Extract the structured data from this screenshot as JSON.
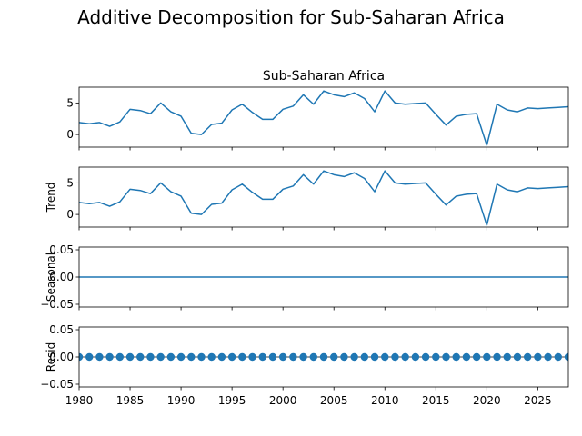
{
  "chart_data": {
    "type": "line",
    "title": "Additive Decomposition for Sub-Saharan Africa",
    "x": [
      1980,
      1981,
      1982,
      1983,
      1984,
      1985,
      1986,
      1987,
      1988,
      1989,
      1990,
      1991,
      1992,
      1993,
      1994,
      1995,
      1996,
      1997,
      1998,
      1999,
      2000,
      2001,
      2002,
      2003,
      2004,
      2005,
      2006,
      2007,
      2008,
      2009,
      2010,
      2011,
      2012,
      2013,
      2014,
      2015,
      2016,
      2017,
      2018,
      2019,
      2020,
      2021,
      2022,
      2023,
      2024,
      2025,
      2026,
      2027,
      2028
    ],
    "xlim": [
      1980,
      2028
    ],
    "xticks": [
      "1980",
      "1985",
      "1990",
      "1995",
      "2000",
      "2005",
      "2010",
      "2015",
      "2020",
      "2025"
    ],
    "line_color": "#1f77b4",
    "panels": [
      {
        "name": "observed",
        "subtitle": "Sub-Saharan Africa",
        "ylabel": "",
        "kind": "line",
        "ylim": [
          -2,
          7.5
        ],
        "yticks": [
          "0",
          "5"
        ],
        "values": [
          1.9,
          1.7,
          1.9,
          1.3,
          2.0,
          4.0,
          3.8,
          3.3,
          5.0,
          3.6,
          2.9,
          0.2,
          0.0,
          1.6,
          1.8,
          3.9,
          4.8,
          3.5,
          2.4,
          2.4,
          4.0,
          4.5,
          6.3,
          4.8,
          6.9,
          6.3,
          6.0,
          6.6,
          5.7,
          3.6,
          6.9,
          5.0,
          4.8,
          4.9,
          5.0,
          3.2,
          1.5,
          2.9,
          3.2,
          3.3,
          -1.7,
          4.8,
          3.9,
          3.6,
          4.2,
          4.1,
          4.2,
          4.3,
          4.4
        ]
      },
      {
        "name": "trend",
        "subtitle": "",
        "ylabel": "Trend",
        "kind": "line",
        "ylim": [
          -2,
          7.5
        ],
        "yticks": [
          "0",
          "5"
        ],
        "values": [
          1.9,
          1.7,
          1.9,
          1.3,
          2.0,
          4.0,
          3.8,
          3.3,
          5.0,
          3.6,
          2.9,
          0.2,
          0.0,
          1.6,
          1.8,
          3.9,
          4.8,
          3.5,
          2.4,
          2.4,
          4.0,
          4.5,
          6.3,
          4.8,
          6.9,
          6.3,
          6.0,
          6.6,
          5.7,
          3.6,
          6.9,
          5.0,
          4.8,
          4.9,
          5.0,
          3.2,
          1.5,
          2.9,
          3.2,
          3.3,
          -1.7,
          4.8,
          3.9,
          3.6,
          4.2,
          4.1,
          4.2,
          4.3,
          4.4
        ]
      },
      {
        "name": "seasonal",
        "subtitle": "",
        "ylabel": "Seasonal",
        "kind": "line",
        "ylim": [
          -0.055,
          0.055
        ],
        "yticks": [
          "0.05",
          "0.00",
          "−0.05"
        ],
        "values": [
          0,
          0,
          0,
          0,
          0,
          0,
          0,
          0,
          0,
          0,
          0,
          0,
          0,
          0,
          0,
          0,
          0,
          0,
          0,
          0,
          0,
          0,
          0,
          0,
          0,
          0,
          0,
          0,
          0,
          0,
          0,
          0,
          0,
          0,
          0,
          0,
          0,
          0,
          0,
          0,
          0,
          0,
          0,
          0,
          0,
          0,
          0,
          0,
          0
        ]
      },
      {
        "name": "resid",
        "subtitle": "",
        "ylabel": "Resid",
        "kind": "scatter",
        "ylim": [
          -0.055,
          0.055
        ],
        "yticks": [
          "0.05",
          "0.00",
          "−0.05"
        ],
        "values": [
          0,
          0,
          0,
          0,
          0,
          0,
          0,
          0,
          0,
          0,
          0,
          0,
          0,
          0,
          0,
          0,
          0,
          0,
          0,
          0,
          0,
          0,
          0,
          0,
          0,
          0,
          0,
          0,
          0,
          0,
          0,
          0,
          0,
          0,
          0,
          0,
          0,
          0,
          0,
          0,
          0,
          0,
          0,
          0,
          0,
          0,
          0,
          0,
          0
        ]
      }
    ]
  }
}
